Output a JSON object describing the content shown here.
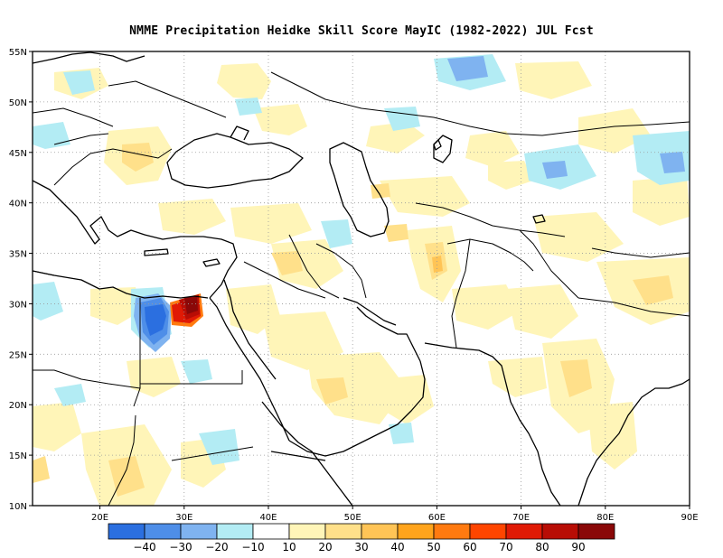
{
  "title": "NMME  Precipitation Heidke Skill Score MayIC (1982-2022) JUL Fcst",
  "map": {
    "lon_range": [
      12,
      90
    ],
    "lat_range": [
      10,
      55
    ],
    "lon_ticks": [
      "20E",
      "30E",
      "40E",
      "50E",
      "60E",
      "70E",
      "80E",
      "90E"
    ],
    "lat_ticks": [
      "55N",
      "50N",
      "45N",
      "40N",
      "35N",
      "30N",
      "25N",
      "20N",
      "15N",
      "10N"
    ],
    "grid": "dotted"
  },
  "colorbar": {
    "labels": [
      "-40",
      "-30",
      "-20",
      "-10",
      "10",
      "20",
      "30",
      "40",
      "50",
      "60",
      "70",
      "80",
      "90"
    ],
    "colors": [
      "#2b6fe0",
      "#4e8ee8",
      "#7fb3f0",
      "#b3ecf4",
      "#ffffff",
      "#fff5b8",
      "#ffe08a",
      "#ffc456",
      "#ffa41c",
      "#ff7a10",
      "#ff4500",
      "#e01a05",
      "#b80d05",
      "#8a0808"
    ]
  }
}
